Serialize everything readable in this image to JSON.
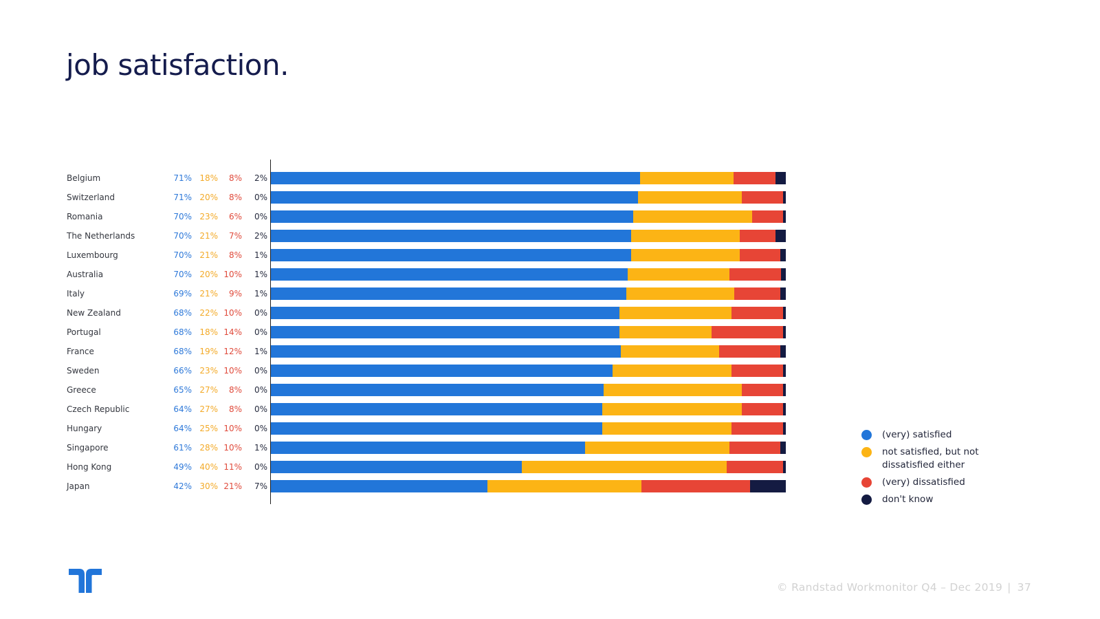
{
  "title": "job satisfaction.",
  "legend": [
    {
      "label": "(very) satisfied",
      "color": "#2276d9"
    },
    {
      "label": "not satisfied, but not dissatisfied either",
      "color": "#fcb415"
    },
    {
      "label": "(very) dissatisfied",
      "color": "#e74536"
    },
    {
      "label": "don't know",
      "color": "#141b42"
    }
  ],
  "chart_data": {
    "type": "bar",
    "orientation": "horizontal",
    "stacked": true,
    "xlim": [
      0,
      100
    ],
    "grid": false,
    "value_suffix": "%",
    "legend_position": "right",
    "categories": [
      "Belgium",
      "Switzerland",
      "Romania",
      "The Netherlands",
      "Luxembourg",
      "Australia",
      "Italy",
      "New Zealand",
      "Portugal",
      "France",
      "Sweden",
      "Greece",
      "Czech Republic",
      "Hungary",
      "Singapore",
      "Hong Kong",
      "Japan"
    ],
    "series": [
      {
        "name": "(very) satisfied",
        "color": "#2276d9",
        "values": [
          71,
          71,
          70,
          70,
          70,
          70,
          69,
          68,
          68,
          68,
          66,
          65,
          64,
          64,
          61,
          49,
          42
        ]
      },
      {
        "name": "not satisfied, but not dissatisfied either",
        "color": "#fcb415",
        "values": [
          18,
          20,
          23,
          21,
          21,
          20,
          21,
          22,
          18,
          19,
          23,
          27,
          27,
          25,
          28,
          40,
          30
        ]
      },
      {
        "name": "(very) dissatisfied",
        "color": "#e74536",
        "values": [
          8,
          8,
          6,
          7,
          8,
          10,
          9,
          10,
          14,
          12,
          10,
          8,
          8,
          10,
          10,
          11,
          21
        ]
      },
      {
        "name": "don't know",
        "color": "#141b42",
        "values": [
          2,
          0,
          0,
          2,
          1,
          1,
          1,
          0,
          0,
          1,
          0,
          0,
          0,
          0,
          1,
          0,
          7
        ]
      }
    ]
  },
  "footer": {
    "text": "© Randstad Workmonitor Q4 – Dec 2019",
    "separator": "|",
    "page": "37"
  },
  "colors": {
    "title": "#151c4d",
    "satisfied": "#2276d9",
    "neutral": "#fcb415",
    "dissatisfied": "#e74536",
    "dont_know": "#141b42",
    "footer_text": "#d2d2d2",
    "logo_blue": "#2175d9"
  }
}
